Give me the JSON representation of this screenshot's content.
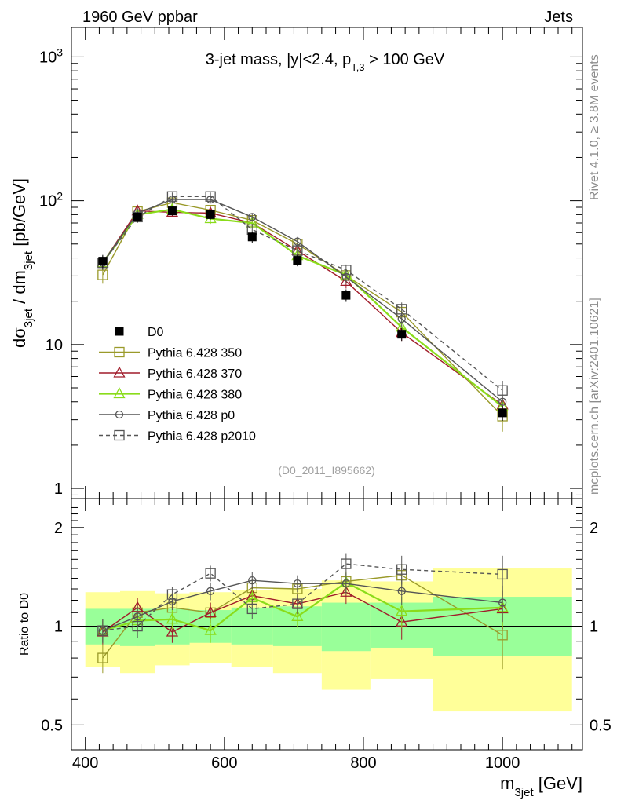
{
  "header": {
    "left": "1960 GeV ppbar",
    "right": "Jets"
  },
  "side_labels": {
    "rivet": "Rivet 4.1.0, ≥ 3.8M events",
    "mcplots": "mcplots.cern.ch [arXiv:2401.10621]"
  },
  "chart_data": [
    {
      "type": "line",
      "panel": "main",
      "title_parts": {
        "pre": "3-jet mass, |y|<2.4, p",
        "sub": "T,3",
        "post": " > 100 GeV"
      },
      "watermark": "(D0_2011_I895662)",
      "ylabel_parts": {
        "a": "dσ",
        "a_sub": "3jet",
        "b": " / dm",
        "b_sub": "3jet",
        "c": " [pb/GeV]"
      },
      "yscale": "log",
      "ylim": [
        0.85,
        1600
      ],
      "xlim": [
        380,
        1115
      ],
      "yticks": [
        {
          "value": 1,
          "label": "1",
          "exp": ""
        },
        {
          "value": 10,
          "label": "10",
          "exp": ""
        },
        {
          "value": 100,
          "label": "10",
          "exp": "2"
        },
        {
          "value": 1000,
          "label": "10",
          "exp": "3"
        }
      ],
      "legend_position": "center-left",
      "x": [
        425,
        475,
        525,
        580,
        640,
        705,
        775,
        855,
        1000
      ],
      "series": [
        {
          "name": "D0",
          "color": "#000000",
          "marker": "filled-square",
          "line": "none",
          "values": [
            38,
            77,
            85,
            80,
            56,
            38.5,
            22,
            11.8,
            3.35
          ],
          "err": [
            4,
            6,
            6,
            6,
            5,
            3.5,
            2.2,
            1.2,
            0.4
          ]
        },
        {
          "name": "Pythia 6.428 350",
          "color": "#9a9a2a",
          "marker": "open-square",
          "line": "solid",
          "values": [
            30.5,
            84,
            97,
            86,
            73,
            50,
            30.2,
            16.8,
            3.18
          ],
          "err": [
            4,
            7,
            6,
            6,
            5,
            4,
            3,
            2,
            0.7
          ]
        },
        {
          "name": "Pythia 6.428 370",
          "color": "#a01c2a",
          "marker": "open-triangle",
          "line": "solid",
          "values": [
            37,
            85,
            83,
            82,
            70,
            45,
            27.5,
            12.1,
            3.8
          ],
          "err": [
            4,
            7,
            6,
            6,
            5,
            4,
            3,
            1.5,
            0.5
          ]
        },
        {
          "name": "Pythia 6.428 380",
          "color": "#8adc1a",
          "marker": "open-triangle",
          "line": "solid",
          "values": [
            37,
            80,
            87,
            75,
            70,
            41.5,
            30.5,
            13.2,
            3.7
          ],
          "err": [
            4,
            7,
            6,
            6,
            5,
            4,
            3,
            1.5,
            0.5
          ]
        },
        {
          "name": "Pythia 6.428 p0",
          "color": "#555555",
          "marker": "open-circle",
          "line": "solid",
          "values": [
            37,
            82,
            102,
            102,
            77,
            52,
            29.5,
            15.1,
            4.0
          ],
          "err": [
            4,
            7,
            6,
            6,
            5,
            4,
            3,
            2,
            0.5
          ]
        },
        {
          "name": "Pythia 6.428 p2010",
          "color": "#555555",
          "marker": "open-square",
          "line": "dashed",
          "values": [
            37,
            77,
            107,
            107,
            63,
            45,
            33,
            17.6,
            4.8
          ],
          "err": [
            4,
            7,
            7,
            7,
            6,
            4,
            3,
            2,
            0.8
          ]
        }
      ]
    },
    {
      "type": "line",
      "panel": "ratio",
      "ylabel": "Ratio to D0",
      "xlabel_parts": {
        "a": "m",
        "sub": "3jet",
        "b": " [GeV]"
      },
      "yscale": "log",
      "ylim": [
        0.42,
        2.45
      ],
      "xlim": [
        380,
        1115
      ],
      "yticks": [
        {
          "value": 0.5,
          "label": "0.5"
        },
        {
          "value": 1,
          "label": "1"
        },
        {
          "value": 2,
          "label": "2"
        }
      ],
      "xticks": [
        {
          "value": 400,
          "label": "400"
        },
        {
          "value": 600,
          "label": "600"
        },
        {
          "value": 800,
          "label": "800"
        },
        {
          "value": 1000,
          "label": "1000"
        }
      ],
      "bands": {
        "bins": [
          [
            400,
            450
          ],
          [
            450,
            500
          ],
          [
            500,
            550
          ],
          [
            550,
            610
          ],
          [
            610,
            670
          ],
          [
            670,
            740
          ],
          [
            740,
            810
          ],
          [
            810,
            900
          ],
          [
            900,
            1100
          ]
        ],
        "yellow": [
          [
            0.75,
            1.27
          ],
          [
            0.72,
            1.28
          ],
          [
            0.76,
            1.26
          ],
          [
            0.77,
            1.27
          ],
          [
            0.75,
            1.29
          ],
          [
            0.72,
            1.3
          ],
          [
            0.64,
            1.38
          ],
          [
            0.69,
            1.37
          ],
          [
            0.55,
            1.5
          ]
        ],
        "green": [
          [
            0.88,
            1.13
          ],
          [
            0.87,
            1.13
          ],
          [
            0.88,
            1.13
          ],
          [
            0.89,
            1.12
          ],
          [
            0.88,
            1.14
          ],
          [
            0.87,
            1.15
          ],
          [
            0.84,
            1.18
          ],
          [
            0.86,
            1.18
          ],
          [
            0.81,
            1.23
          ]
        ],
        "yellow_color": "#ffff99",
        "green_color": "#99ff99"
      },
      "x": [
        425,
        475,
        525,
        580,
        640,
        705,
        775,
        855,
        1000
      ],
      "series": [
        {
          "name": "Pythia 6.428 350",
          "color": "#9a9a2a",
          "marker": "open-square",
          "line": "solid",
          "values": [
            0.8,
            1.1,
            1.14,
            1.1,
            1.31,
            1.3,
            1.37,
            1.43,
            0.94
          ],
          "err": [
            0.08,
            0.08,
            0.07,
            0.08,
            0.08,
            0.08,
            0.1,
            0.12,
            0.2
          ]
        },
        {
          "name": "Pythia 6.428 370",
          "color": "#a01c2a",
          "marker": "open-triangle",
          "line": "solid",
          "values": [
            0.96,
            1.14,
            0.96,
            1.1,
            1.24,
            1.17,
            1.27,
            1.03,
            1.13
          ],
          "err": [
            0.08,
            0.08,
            0.07,
            0.08,
            0.08,
            0.08,
            0.1,
            0.12,
            0.15
          ]
        },
        {
          "name": "Pythia 6.428 380",
          "color": "#8adc1a",
          "marker": "open-triangle",
          "line": "solid",
          "values": [
            0.97,
            1.04,
            1.05,
            0.97,
            1.22,
            1.07,
            1.36,
            1.11,
            1.14
          ],
          "err": [
            0.08,
            0.08,
            0.07,
            0.08,
            0.08,
            0.08,
            0.1,
            0.12,
            0.15
          ]
        },
        {
          "name": "Pythia 6.428 p0",
          "color": "#555555",
          "marker": "open-circle",
          "line": "solid",
          "values": [
            0.97,
            1.07,
            1.19,
            1.28,
            1.38,
            1.35,
            1.35,
            1.28,
            1.18
          ],
          "err": [
            0.08,
            0.08,
            0.07,
            0.08,
            0.08,
            0.08,
            0.1,
            0.12,
            0.15
          ]
        },
        {
          "name": "Pythia 6.428 p2010",
          "color": "#555555",
          "marker": "open-square",
          "line": "dashed",
          "values": [
            0.97,
            1.0,
            1.25,
            1.45,
            1.13,
            1.17,
            1.55,
            1.49,
            1.44
          ],
          "err": [
            0.08,
            0.08,
            0.07,
            0.08,
            0.08,
            0.08,
            0.12,
            0.15,
            0.2
          ]
        }
      ]
    }
  ]
}
